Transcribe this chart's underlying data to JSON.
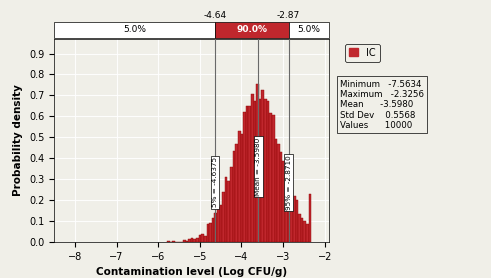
{
  "mean": -3.598,
  "std": 0.5568,
  "minimum": -7.5634,
  "maximum": -2.3256,
  "n_values": 10000,
  "pct5": -4.6375,
  "pct95": -2.871,
  "ci_low": -4.64,
  "ci_high": -2.87,
  "bar_color": "#C0272D",
  "bar_edge_color": "#8B0000",
  "bg_color": "#F0EFE8",
  "xlabel": "Contamination level (Log CFU/g)",
  "ylabel": "Probability density",
  "xlim": [
    -8.5,
    -1.9
  ],
  "ylim": [
    0.0,
    0.97
  ],
  "xticks": [
    -8,
    -7,
    -6,
    -5,
    -4,
    -3,
    -2
  ],
  "yticks": [
    0.0,
    0.1,
    0.2,
    0.3,
    0.4,
    0.5,
    0.6,
    0.7,
    0.8,
    0.9
  ],
  "legend_label": "IC",
  "stats_labels": [
    "Minimum",
    "Maximum",
    "Mean",
    "Std Dev",
    "Values"
  ],
  "stats_values": [
    "-7.5634",
    "-2.3256",
    "-3.5980",
    "0.5568",
    "10000"
  ],
  "top_bar_pct_left": "5.0%",
  "top_bar_pct_mid": "90.0%",
  "top_bar_pct_right": "5.0%",
  "n_bins": 55,
  "seed": 42
}
